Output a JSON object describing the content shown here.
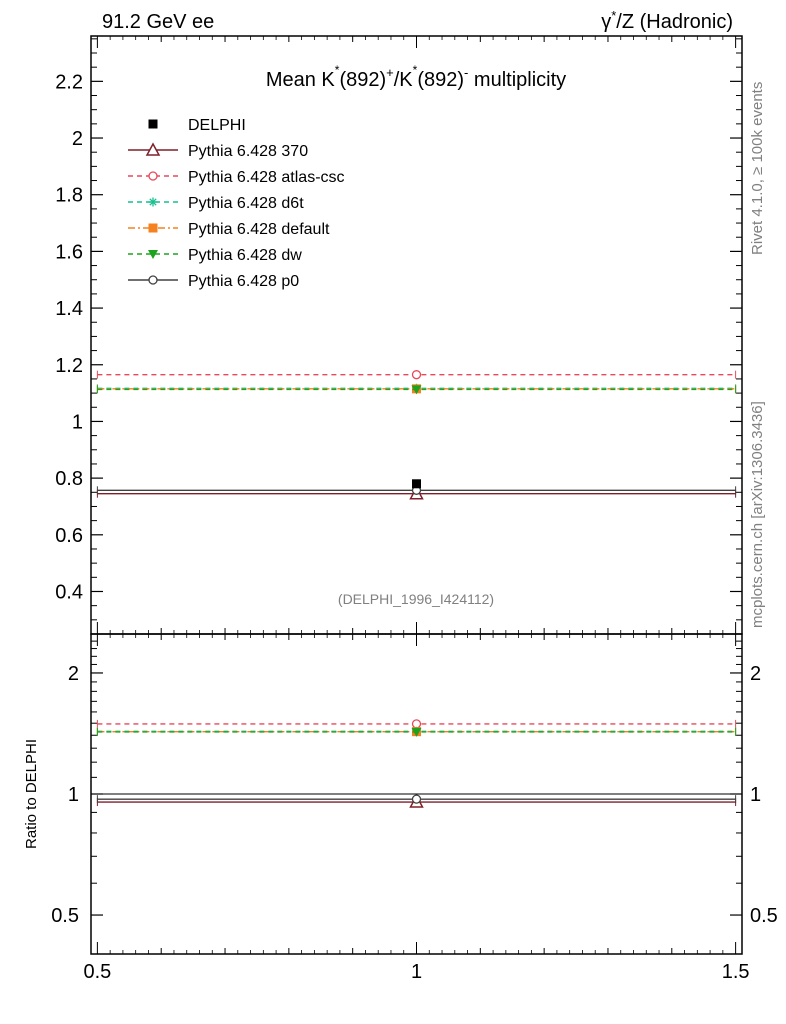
{
  "header": {
    "left": "91.2 GeV ee",
    "right_gamma": "γ",
    "right_rest": "/Z (Hadronic)",
    "right_star": "*"
  },
  "side_text": {
    "rivet": "Rivet 4.1.0, ≥ 100k events",
    "mcplots": "mcplots.cern.ch [arXiv:1306.3436]"
  },
  "chart_data": [
    {
      "type": "scatter",
      "title_parts": {
        "prefix": "Mean K",
        "star": "*",
        "mid1": "(892)",
        "plus": "+",
        "slash": "/K",
        "mid2": "(892)",
        "minus": "-",
        "suffix": " multiplicity"
      },
      "analysis_tag": "(DELPHI_1996_I424112)",
      "xlim": [
        0.49,
        1.51
      ],
      "ylim": [
        0.25,
        2.36
      ],
      "yticks": [
        0.4,
        0.6,
        0.8,
        1.0,
        1.2,
        1.4,
        1.6,
        1.8,
        2.0,
        2.2
      ],
      "ytick_labels": [
        "0.4",
        "0.6",
        "0.8",
        "1",
        "1.2",
        "1.4",
        "1.6",
        "1.8",
        "2",
        "2.2"
      ],
      "legend_position": "top-left",
      "data": {
        "name": "DELPHI",
        "x": 1.0,
        "y": 0.78,
        "color": "#000000",
        "marker": "filled-square"
      },
      "series": [
        {
          "name": "Pythia 6.428 370",
          "y": 0.745,
          "color": "#7f1f2a",
          "dash": "solid",
          "marker": "open-triangle"
        },
        {
          "name": "Pythia 6.428 atlas-csc",
          "y": 1.165,
          "color": "#e8495a",
          "dash": "dashed",
          "marker": "open-circle"
        },
        {
          "name": "Pythia 6.428 d6t",
          "y": 1.117,
          "color": "#16c08e",
          "dash": "dashed",
          "marker": "star"
        },
        {
          "name": "Pythia 6.428 default",
          "y": 1.115,
          "color": "#f5821f",
          "dash": "dashdot",
          "marker": "filled-square"
        },
        {
          "name": "Pythia 6.428 dw",
          "y": 1.113,
          "color": "#1ea31e",
          "dash": "dashed",
          "marker": "filled-triangle-down"
        },
        {
          "name": "Pythia 6.428 p0",
          "y": 0.757,
          "color": "#404040",
          "dash": "solid",
          "marker": "open-circle"
        }
      ]
    },
    {
      "type": "scatter",
      "ylabel": "Ratio to DELPHI",
      "xlim": [
        0.49,
        1.51
      ],
      "ylim": [
        0.4,
        2.5
      ],
      "scale": "log",
      "xticks": [
        0.5,
        1.0,
        1.5
      ],
      "xtick_labels": [
        "0.5",
        "1",
        "1.5"
      ],
      "yticks": [
        0.5,
        1.0,
        2.0
      ],
      "ytick_labels": [
        "0.5",
        "1",
        "2"
      ],
      "series": [
        {
          "name": "Pythia 6.428 370",
          "y": 0.955
        },
        {
          "name": "Pythia 6.428 atlas-csc",
          "y": 1.494
        },
        {
          "name": "Pythia 6.428 d6t",
          "y": 1.432
        },
        {
          "name": "Pythia 6.428 default",
          "y": 1.429
        },
        {
          "name": "Pythia 6.428 dw",
          "y": 1.427
        },
        {
          "name": "Pythia 6.428 p0",
          "y": 0.971
        }
      ]
    }
  ]
}
